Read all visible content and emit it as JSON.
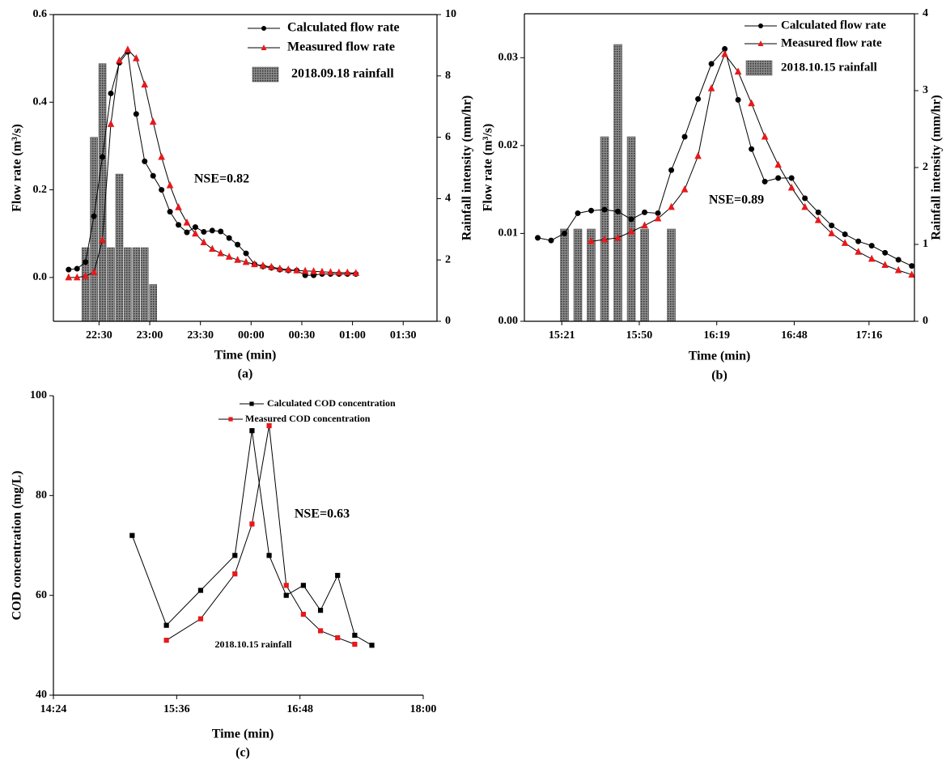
{
  "chart_data": [
    {
      "type": "line",
      "xlabel": "Time (min)",
      "ylabel": "Flow rate (m³/s)",
      "y2label": "Rainfall intensity (mm/hr)",
      "caption": "(a)",
      "annotations": [
        "NSE=0.82"
      ],
      "legend": "upper right",
      "xlim": [
        3,
        230
      ],
      "xticks": [
        {
          "value": 30,
          "label": "22:30"
        },
        {
          "value": 60,
          "label": "23:00"
        },
        {
          "value": 90,
          "label": "23:30"
        },
        {
          "value": 120,
          "label": "00:00"
        },
        {
          "value": 150,
          "label": "00:30"
        },
        {
          "value": 180,
          "label": "01:00"
        },
        {
          "value": 210,
          "label": "01:30"
        }
      ],
      "ylim": [
        -0.1,
        0.6
      ],
      "yticks": [
        {
          "value": 0,
          "label": "0.0"
        },
        0.2,
        0.4,
        0.6
      ],
      "y2lim": [
        0,
        10
      ],
      "y2ticks": [
        0,
        2,
        4,
        6,
        8,
        10
      ],
      "series": [
        {
          "name": "Calculated flow rate",
          "type": "line",
          "marker": "circle",
          "color": "#000000",
          "x": [
            12,
            17,
            22,
            27,
            32,
            37,
            42,
            47,
            52,
            57,
            62,
            67,
            72,
            77,
            82,
            87,
            92,
            97,
            102,
            107,
            112,
            117,
            122,
            127,
            132,
            137,
            142,
            147,
            152,
            157,
            162,
            167,
            172,
            177,
            182
          ],
          "values": [
            0.018,
            0.02,
            0.035,
            0.14,
            0.275,
            0.42,
            0.49,
            0.515,
            0.373,
            0.265,
            0.232,
            0.2,
            0.15,
            0.12,
            0.103,
            0.115,
            0.104,
            0.107,
            0.105,
            0.09,
            0.075,
            0.055,
            0.03,
            0.025,
            0.022,
            0.018,
            0.016,
            0.016,
            0.005,
            0.005,
            0.008,
            0.008,
            0.008,
            0.008,
            0.008
          ]
        },
        {
          "name": "Measured flow rate",
          "type": "line",
          "marker": "triangle",
          "color": "#e8191a",
          "x": [
            12,
            17,
            22,
            27,
            32,
            37,
            42,
            47,
            52,
            57,
            62,
            67,
            72,
            77,
            82,
            87,
            92,
            97,
            102,
            107,
            112,
            117,
            122,
            127,
            132,
            137,
            142,
            147,
            152,
            157,
            162,
            167,
            172,
            177,
            182
          ],
          "values": [
            0,
            0,
            0.003,
            0.012,
            0.085,
            0.35,
            0.495,
            0.52,
            0.5,
            0.44,
            0.355,
            0.275,
            0.21,
            0.16,
            0.125,
            0.1,
            0.08,
            0.065,
            0.055,
            0.047,
            0.04,
            0.035,
            0.03,
            0.027,
            0.024,
            0.02,
            0.018,
            0.016,
            0.015,
            0.014,
            0.013,
            0.012,
            0.011,
            0.011,
            0.01
          ]
        },
        {
          "name": "2018.09.18 rainfall",
          "type": "bar",
          "axis": "y2",
          "color": "#555555",
          "x": [
            22,
            27,
            32,
            37,
            42,
            47,
            52,
            57,
            62
          ],
          "values": [
            2.4,
            6,
            8.4,
            2.4,
            4.8,
            2.4,
            2.4,
            2.4,
            1.2
          ]
        }
      ]
    },
    {
      "type": "line",
      "xlabel": "Time (min)",
      "ylabel": "Flow rate (m³/s)",
      "y2label": "Rainfall intensity (mm/hr)",
      "caption": "(b)",
      "annotations": [
        "NSE=0.89"
      ],
      "legend": "upper right",
      "xlim": [
        7,
        153
      ],
      "xticks": [
        {
          "value": 21,
          "label": "15:21"
        },
        {
          "value": 50,
          "label": "15:50"
        },
        {
          "value": 79,
          "label": "16:19"
        },
        {
          "value": 108,
          "label": "16:48"
        },
        {
          "value": 136,
          "label": "17:16"
        }
      ],
      "ylim": [
        0,
        0.035
      ],
      "yticks": [
        {
          "value": 0,
          "label": "0.00"
        },
        0.01,
        0.02,
        0.03
      ],
      "y2lim": [
        0,
        4
      ],
      "y2ticks": [
        0,
        1,
        2,
        3,
        4
      ],
      "series": [
        {
          "name": "Calculated flow rate",
          "type": "line",
          "marker": "circle",
          "color": "#000000",
          "x": [
            12,
            17,
            22,
            27,
            32,
            37,
            42,
            47,
            52,
            57,
            62,
            67,
            72,
            77,
            82,
            87,
            92,
            97,
            102,
            107,
            112,
            117,
            122,
            127,
            132,
            137,
            142,
            147,
            152
          ],
          "values": [
            0.0095,
            0.0092,
            0.01,
            0.0123,
            0.0126,
            0.0127,
            0.0125,
            0.0116,
            0.0124,
            0.0123,
            0.0172,
            0.021,
            0.0253,
            0.0293,
            0.031,
            0.0252,
            0.0196,
            0.0159,
            0.0163,
            0.0163,
            0.014,
            0.0124,
            0.0109,
            0.0099,
            0.0091,
            0.0086,
            0.0078,
            0.007,
            0.0063
          ]
        },
        {
          "name": "Measured flow rate",
          "type": "line",
          "marker": "triangle",
          "color": "#e8191a",
          "x": [
            12,
            17,
            22,
            27,
            32,
            37,
            42,
            47,
            52,
            57,
            62,
            67,
            72,
            77,
            82,
            87,
            92,
            97,
            102,
            107,
            112,
            117,
            122,
            127,
            132,
            137,
            142,
            147,
            152
          ],
          "values": [
            null,
            null,
            null,
            null,
            0.0091,
            0.0093,
            0.0095,
            0.0102,
            0.0109,
            0.0117,
            0.013,
            0.015,
            0.0188,
            0.0265,
            0.0304,
            0.0284,
            0.0248,
            0.021,
            0.0178,
            0.0152,
            0.013,
            0.0115,
            0.01,
            0.0089,
            0.0079,
            0.0071,
            0.0064,
            0.0058,
            0.0053
          ]
        },
        {
          "name": "2018.10.15 rainfall",
          "type": "bar",
          "axis": "y2",
          "color": "#555555",
          "x": [
            22,
            27,
            32,
            37,
            42,
            47,
            52,
            62
          ],
          "values": [
            1.2,
            1.2,
            1.2,
            2.4,
            3.6,
            2.4,
            1.2,
            1.2
          ]
        }
      ]
    },
    {
      "type": "line",
      "xlabel": "Time (min)",
      "ylabel": "COD concentration (mg/L)",
      "caption": "(c)",
      "annotations": [
        "NSE=0.63",
        "2018.10.15 rainfall"
      ],
      "legend": "upper right",
      "xlim": [
        24,
        240
      ],
      "xticks": [
        {
          "value": 24,
          "label": "14:24"
        },
        {
          "value": 96,
          "label": "15:36"
        },
        {
          "value": 168,
          "label": "16:48"
        },
        {
          "value": 240,
          "label": "18:00"
        }
      ],
      "ylim": [
        40,
        100
      ],
      "yticks": [
        40,
        60,
        80,
        100
      ],
      "series": [
        {
          "name": "Calculated COD concentration",
          "type": "line",
          "marker": "square",
          "color": "#000000",
          "x": [
            70,
            90,
            110,
            130,
            140,
            150,
            160,
            170,
            180,
            190,
            200,
            210
          ],
          "values": [
            72,
            54,
            61,
            68,
            93,
            68,
            60,
            62,
            57,
            64,
            52,
            50
          ]
        },
        {
          "name": "Measured COD concentration",
          "type": "line",
          "marker": "square",
          "color": "#e8191a",
          "x": [
            90,
            110,
            130,
            140,
            150,
            160,
            170,
            180,
            190,
            200
          ],
          "values": [
            51,
            55.3,
            64.3,
            74.3,
            94,
            62,
            56.2,
            52.9,
            51.5,
            50.2
          ]
        }
      ]
    }
  ]
}
